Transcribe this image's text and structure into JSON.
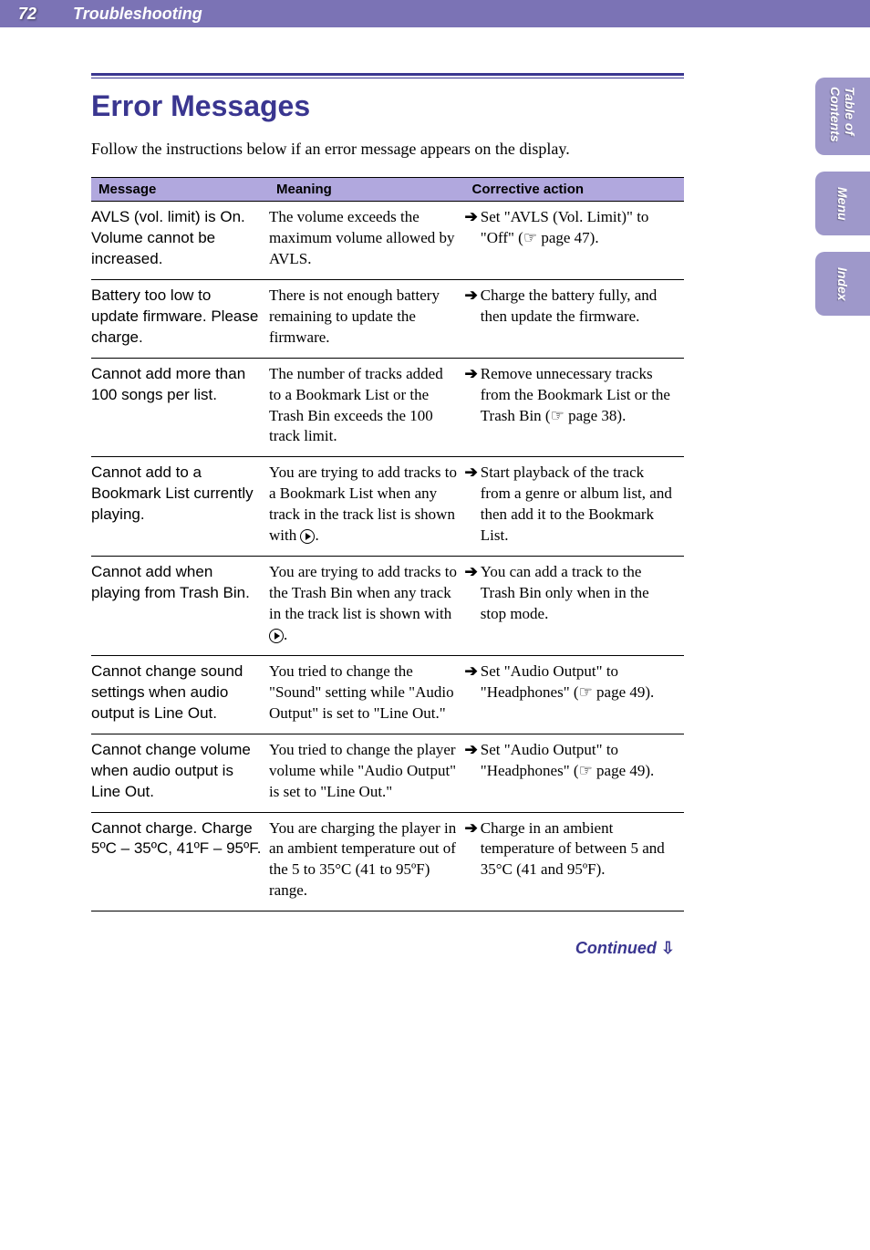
{
  "header": {
    "page_number": "72",
    "section": "Troubleshooting"
  },
  "side_tabs": {
    "toc": "Table of\nContents",
    "menu": "Menu",
    "index": "Index"
  },
  "title": "Error Messages",
  "intro": "Follow the instructions below if an error message appears on the display.",
  "table": {
    "headers": {
      "message": "Message",
      "meaning": "Meaning",
      "action": "Corrective action"
    },
    "rows": [
      {
        "message": "AVLS (vol. limit) is On. Volume cannot be increased.",
        "meaning": "The volume exceeds the maximum volume allowed by AVLS.",
        "action": "Set \"AVLS (Vol. Limit)\" to \"Off\" (☞ page 47)."
      },
      {
        "message": "Battery too low to update firmware. Please charge.",
        "meaning": "There is not enough battery remaining to update the firmware.",
        "action": "Charge the battery fully, and then update the firmware."
      },
      {
        "message": "Cannot add more than 100 songs per list.",
        "meaning": "The number of tracks added to a Bookmark List or the Trash Bin exceeds the 100 track limit.",
        "action": "Remove unnecessary tracks from the Bookmark List or the Trash Bin (☞ page 38)."
      },
      {
        "message": "Cannot add to a Bookmark List currently playing.",
        "meaning": "You are trying to add tracks to a Bookmark List when any track in the track list is shown with",
        "meaning_has_play_icon": true,
        "action": "Start playback of the track from a genre or album list, and then add it to the Bookmark List."
      },
      {
        "message": "Cannot add when playing from Trash Bin.",
        "meaning": "You are trying to add tracks to the Trash Bin when any track in the track list is shown with",
        "meaning_has_play_icon": true,
        "action": "You can add a track to the Trash Bin only when in the stop mode."
      },
      {
        "message": "Cannot change sound settings when audio output is Line Out.",
        "meaning": "You tried to change the \"Sound\" setting while \"Audio Output\" is set to \"Line Out.\"",
        "action": "Set \"Audio Output\" to \"Headphones\" (☞ page 49)."
      },
      {
        "message": "Cannot change volume when audio output is Line Out.",
        "meaning": "You tried to change the player volume while \"Audio Output\" is set to \"Line Out.\"",
        "action": "Set \"Audio Output\" to \"Headphones\" (☞ page 49)."
      },
      {
        "message": "Cannot charge. Charge 5ºC – 35ºC, 41ºF – 95ºF.",
        "meaning": "You are charging the player in an ambient temperature out of the 5 to 35°C (41 to 95ºF) range.",
        "action": "Charge in an ambient temperature of between 5 and 35°C (41 and 95ºF)."
      }
    ]
  },
  "continued": "Continued",
  "colors": {
    "header_bg": "#7b73b5",
    "title_color": "#3a3690",
    "tab_bg": "#9e98ca",
    "table_header_bg": "#b1a8de"
  }
}
